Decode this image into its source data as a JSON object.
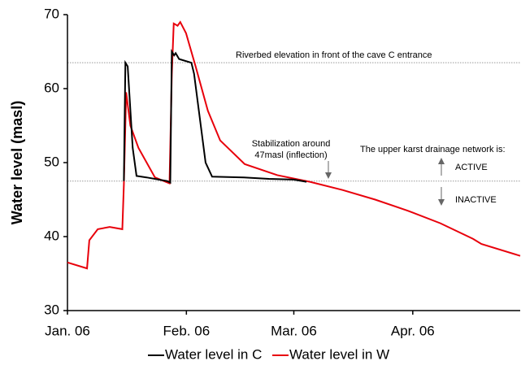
{
  "chart_data": {
    "type": "line",
    "y_label": "Water level (masl)",
    "xlim": [
      0,
      118
    ],
    "ylim": [
      30,
      70
    ],
    "xticks": [
      {
        "value": 0,
        "label": "Jan. 06"
      },
      {
        "value": 31,
        "label": "Feb. 06"
      },
      {
        "value": 59,
        "label": "Mar. 06"
      },
      {
        "value": 90,
        "label": "Apr. 06"
      }
    ],
    "yticks": [
      30,
      40,
      50,
      60,
      70
    ],
    "reference_lines": [
      63.5,
      47.5
    ],
    "annotations": {
      "riverbed": "Riverbed elevation in front of the cave C entrance",
      "stabilization": [
        "Stabilization around",
        "47masl (inflection)"
      ],
      "network": "The upper karst drainage network is:",
      "active": "ACTIVE",
      "inactive": "INACTIVE"
    },
    "series": [
      {
        "name": "Water level in C",
        "color": "#000000",
        "x": [
          14.7,
          15.1,
          15.7,
          17,
          18,
          20.6,
          26,
          26.8,
          27.2,
          27.8,
          28.2,
          29.1,
          32.3,
          33,
          36,
          37.7,
          46,
          52.5,
          59,
          62.3
        ],
        "values": [
          47.5,
          63.5,
          63,
          52,
          48.2,
          48,
          47.5,
          47.3,
          65,
          64.5,
          64.8,
          64,
          63.5,
          62,
          50,
          48.1,
          48,
          47.8,
          47.7,
          47.4
        ]
      },
      {
        "name": "Water level in W",
        "color": "#e8000b",
        "x": [
          0,
          5.1,
          5.7,
          7.9,
          11,
          14.3,
          14.7,
          15.3,
          16.4,
          18.5,
          22.8,
          26.6,
          27.2,
          27.7,
          28.7,
          29.4,
          30.9,
          33.4,
          36.6,
          39.8,
          46.2,
          54.7,
          63.2,
          71.7,
          80.2,
          88.7,
          97.2,
          105.7,
          107.9,
          118
        ],
        "values": [
          36.5,
          35.7,
          39.5,
          41,
          41.3,
          41,
          47,
          59.5,
          55,
          52,
          48,
          47.2,
          62,
          68.8,
          68.5,
          69,
          67.5,
          63,
          57,
          53,
          49.8,
          48.3,
          47.4,
          46.3,
          45,
          43.5,
          41.8,
          39.7,
          39,
          37.4
        ]
      }
    ]
  }
}
